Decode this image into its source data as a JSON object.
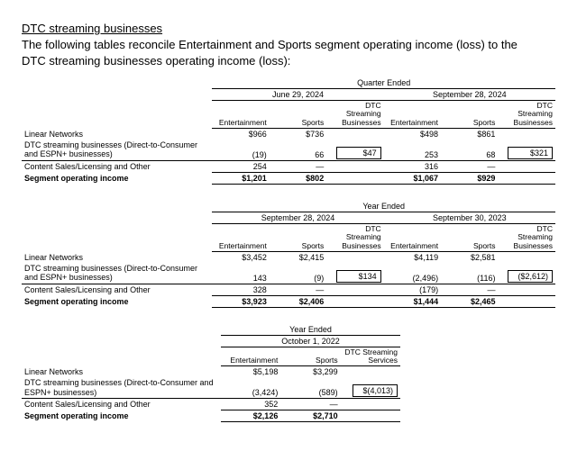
{
  "heading": {
    "title": "DTC streaming businesses",
    "subtitle": "The following tables reconcile Entertainment and Sports segment operating income (loss) to the DTC streaming businesses operating income (loss):"
  },
  "column_labels": {
    "entertainment": "Entertainment",
    "sports": "Sports",
    "dtc_businesses": "DTC Streaming Businesses",
    "dtc_services": "DTC Streaming Services"
  },
  "row_labels": {
    "linear": "Linear Networks",
    "dtc": "DTC streaming businesses (Direct-to-Consumer and ESPN+ businesses)",
    "content": "Content Sales/Licensing and Other",
    "segment": "Segment operating income"
  },
  "tables": [
    {
      "super_header": "Quarter Ended",
      "periods": [
        {
          "label": "June 29, 2024",
          "dtc_col_key": "dtc_businesses",
          "rows": {
            "linear": {
              "ent": "$966",
              "sports": "$736",
              "dtc": ""
            },
            "dtc": {
              "ent": "(19)",
              "sports": "66",
              "dtc": "$47"
            },
            "content": {
              "ent": "254",
              "sports": "—",
              "dtc": ""
            },
            "segment": {
              "ent": "$1,201",
              "sports": "$802",
              "dtc": ""
            }
          }
        },
        {
          "label": "September 28, 2024",
          "dtc_col_key": "dtc_businesses",
          "rows": {
            "linear": {
              "ent": "$498",
              "sports": "$861",
              "dtc": ""
            },
            "dtc": {
              "ent": "253",
              "sports": "68",
              "dtc": "$321"
            },
            "content": {
              "ent": "316",
              "sports": "—",
              "dtc": ""
            },
            "segment": {
              "ent": "$1,067",
              "sports": "$929",
              "dtc": ""
            }
          }
        }
      ]
    },
    {
      "super_header": "Year Ended",
      "periods": [
        {
          "label": "September 28, 2024",
          "dtc_col_key": "dtc_businesses",
          "rows": {
            "linear": {
              "ent": "$3,452",
              "sports": "$2,415",
              "dtc": ""
            },
            "dtc": {
              "ent": "143",
              "sports": "(9)",
              "dtc": "$134"
            },
            "content": {
              "ent": "328",
              "sports": "—",
              "dtc": ""
            },
            "segment": {
              "ent": "$3,923",
              "sports": "$2,406",
              "dtc": ""
            }
          }
        },
        {
          "label": "September 30, 2023",
          "dtc_col_key": "dtc_businesses",
          "rows": {
            "linear": {
              "ent": "$4,119",
              "sports": "$2,581",
              "dtc": ""
            },
            "dtc": {
              "ent": "(2,496)",
              "sports": "(116)",
              "dtc": "($2,612)"
            },
            "content": {
              "ent": "(179)",
              "sports": "—",
              "dtc": ""
            },
            "segment": {
              "ent": "$1,444",
              "sports": "$2,465",
              "dtc": ""
            }
          }
        }
      ]
    },
    {
      "super_header": "Year Ended",
      "periods": [
        {
          "label": "October 1, 2022",
          "dtc_col_key": "dtc_services",
          "rows": {
            "linear": {
              "ent": "$5,198",
              "sports": "$3,299",
              "dtc": ""
            },
            "dtc": {
              "ent": "(3,424)",
              "sports": "(589)",
              "dtc": "$(4,013)"
            },
            "content": {
              "ent": "352",
              "sports": "—",
              "dtc": ""
            },
            "segment": {
              "ent": "$2,126",
              "sports": "$2,710",
              "dtc": ""
            }
          }
        }
      ]
    }
  ]
}
